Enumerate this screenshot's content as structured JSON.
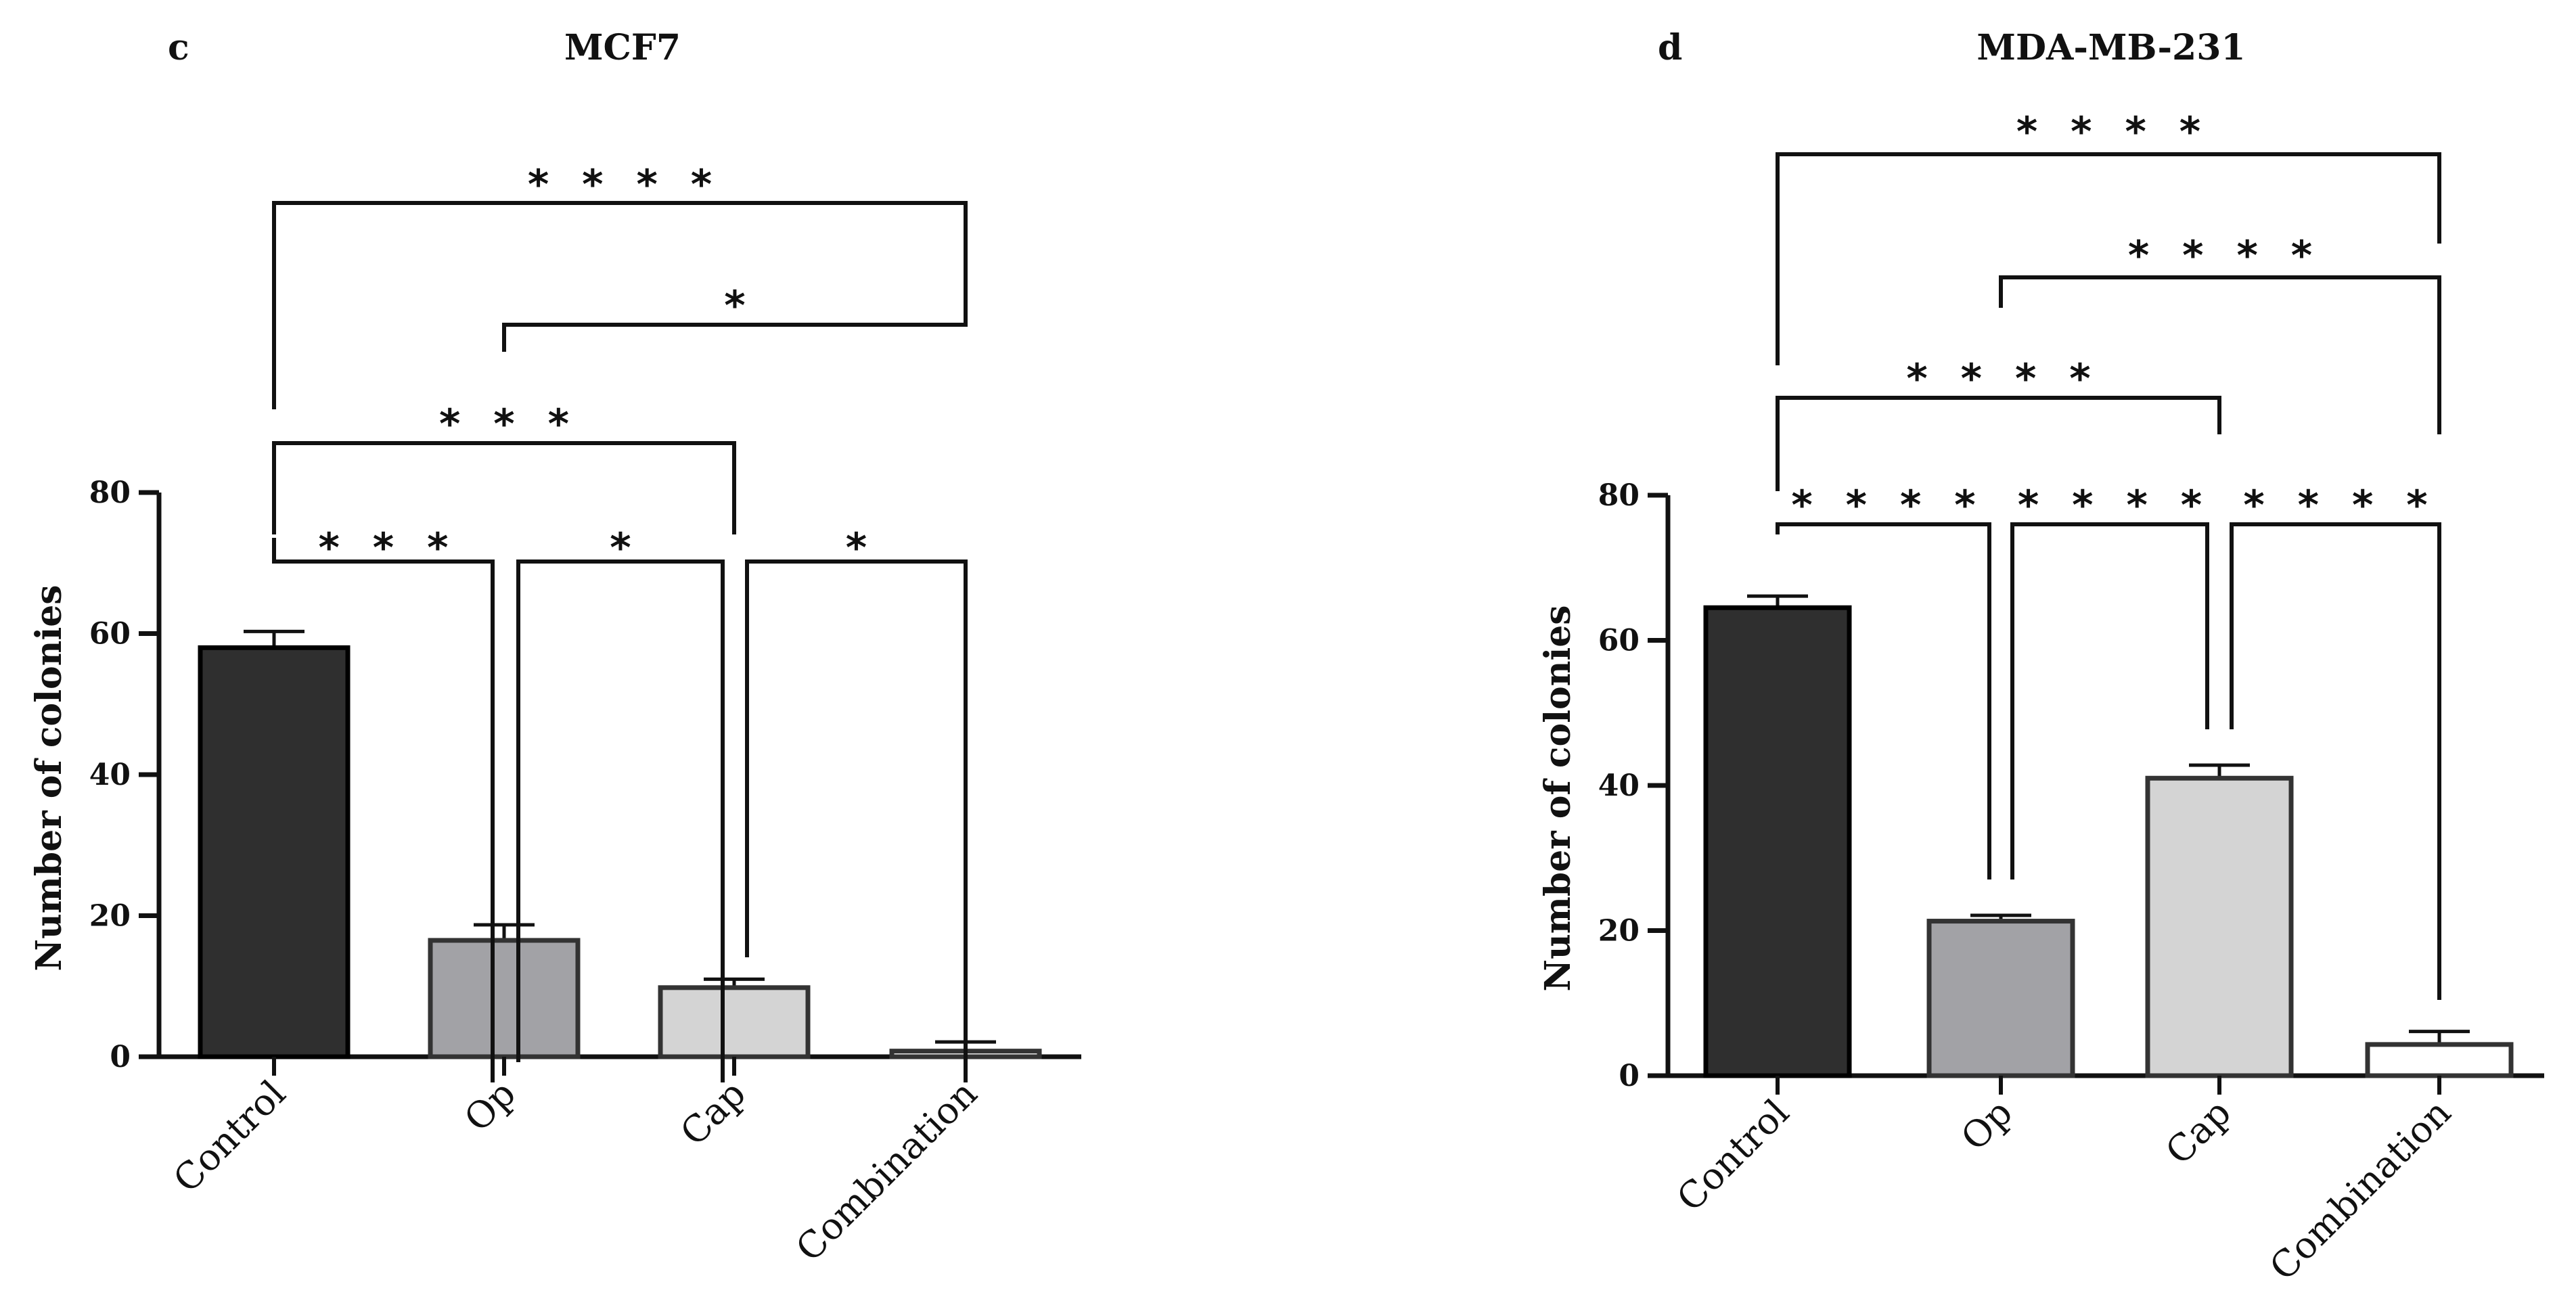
{
  "chart_data": [
    {
      "type": "bar",
      "panel_letter": "c",
      "title": "MCF7",
      "ylabel": "Number of colonies",
      "categories": [
        "Control",
        "Op",
        "Cap",
        "Combination"
      ],
      "values": [
        58,
        16.5,
        9.8,
        0.8
      ],
      "errors": [
        2.3,
        2.2,
        1.2,
        1.3
      ],
      "bar_colors": [
        "#2f2f2f",
        "#a2a2a6",
        "#d4d4d4",
        "#ffffff"
      ],
      "ylim": [
        0,
        80
      ],
      "yticks": [
        "0",
        "20",
        "40",
        "60",
        "80"
      ],
      "comparisons": [
        {
          "pair": [
            "Control",
            "Op"
          ],
          "label": "* * *"
        },
        {
          "pair": [
            "Op",
            "Cap"
          ],
          "label": "*"
        },
        {
          "pair": [
            "Cap",
            "Combination"
          ],
          "label": "*"
        },
        {
          "pair": [
            "Control",
            "Cap"
          ],
          "label": "* * *"
        },
        {
          "pair": [
            "Op",
            "Combination"
          ],
          "label": "*"
        },
        {
          "pair": [
            "Control",
            "Combination"
          ],
          "label": "* * * *"
        }
      ]
    },
    {
      "type": "bar",
      "panel_letter": "d",
      "title": "MDA-MB-231",
      "ylabel": "Number of colonies",
      "categories": [
        "Control",
        "Op",
        "Cap",
        "Combination"
      ],
      "values": [
        64.5,
        21.3,
        41,
        4.3
      ],
      "errors": [
        1.6,
        0.8,
        1.8,
        1.8
      ],
      "bar_colors": [
        "#2f2f2f",
        "#a2a2a6",
        "#d4d4d4",
        "#ffffff"
      ],
      "ylim": [
        0,
        80
      ],
      "yticks": [
        "0",
        "20",
        "40",
        "60",
        "80"
      ],
      "comparisons": [
        {
          "pair": [
            "Control",
            "Op"
          ],
          "label": "* * * *"
        },
        {
          "pair": [
            "Op",
            "Cap"
          ],
          "label": "* * * *"
        },
        {
          "pair": [
            "Cap",
            "Combination"
          ],
          "label": "* * * *"
        },
        {
          "pair": [
            "Control",
            "Cap"
          ],
          "label": "* * * *"
        },
        {
          "pair": [
            "Op",
            "Combination"
          ],
          "label": "* * * *"
        },
        {
          "pair": [
            "Control",
            "Combination"
          ],
          "label": "* * * *"
        }
      ]
    }
  ]
}
